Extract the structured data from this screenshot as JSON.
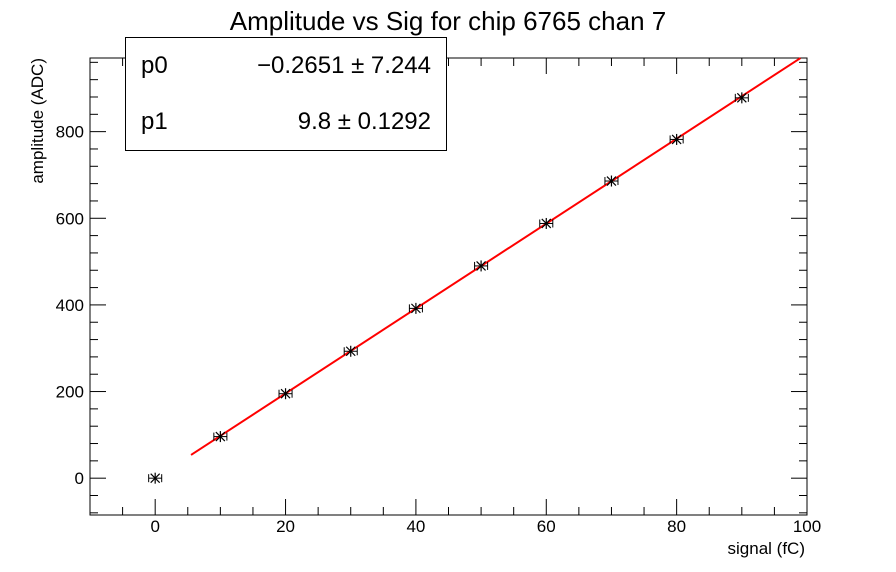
{
  "chart_data": {
    "type": "scatter",
    "title": "Amplitude vs Sig for chip 6765 chan 7",
    "xlabel": "signal (fC)",
    "ylabel": "amplitude (ADC)",
    "xlim": [
      -10,
      100
    ],
    "ylim": [
      -85,
      970
    ],
    "x_ticks": [
      0,
      20,
      40,
      60,
      80,
      100
    ],
    "y_ticks": [
      0,
      200,
      400,
      600,
      800
    ],
    "grid": false,
    "points": [
      {
        "x": 0,
        "y": 0,
        "xerr": 1,
        "yerr": 3
      },
      {
        "x": 10,
        "y": 96,
        "xerr": 1,
        "yerr": 3
      },
      {
        "x": 20,
        "y": 195,
        "xerr": 1,
        "yerr": 3
      },
      {
        "x": 30,
        "y": 293,
        "xerr": 1,
        "yerr": 3
      },
      {
        "x": 40,
        "y": 392,
        "xerr": 1,
        "yerr": 3
      },
      {
        "x": 50,
        "y": 490,
        "xerr": 1,
        "yerr": 3
      },
      {
        "x": 60,
        "y": 588,
        "xerr": 1,
        "yerr": 3
      },
      {
        "x": 70,
        "y": 686,
        "xerr": 1,
        "yerr": 3
      },
      {
        "x": 80,
        "y": 782,
        "xerr": 1,
        "yerr": 3
      },
      {
        "x": 90,
        "y": 878,
        "xerr": 1,
        "yerr": 3
      }
    ],
    "fit": {
      "p0": -0.2651,
      "p1": 9.8,
      "x_range": [
        5.5,
        99
      ],
      "color": "#ff0000"
    },
    "marker_color": "#000000"
  },
  "stats": [
    {
      "name": "p0",
      "value": "−0.2651 ± 7.244"
    },
    {
      "name": "p1",
      "value": "9.8 ± 0.1292"
    }
  ]
}
